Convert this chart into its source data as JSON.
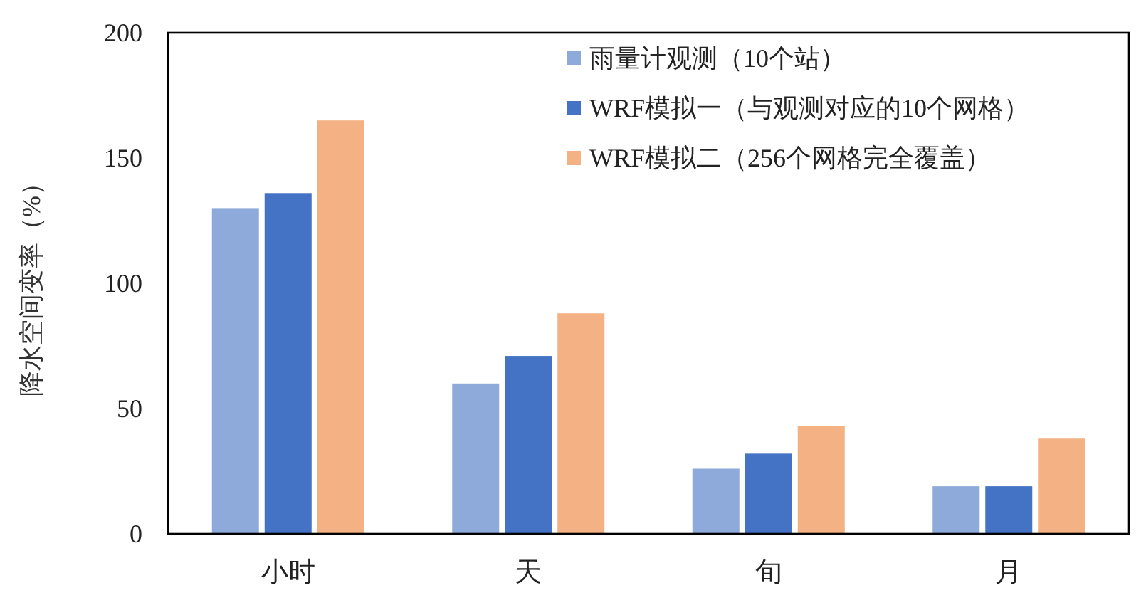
{
  "chart_data": {
    "type": "bar",
    "ylabel": "降水空间变率（%）",
    "categories": [
      "小时",
      "天",
      "旬",
      "月"
    ],
    "series": [
      {
        "name": "雨量计观测（10个站）",
        "color": "#8eaadb",
        "values": [
          130,
          60,
          26,
          19
        ]
      },
      {
        "name": "WRF模拟一（与观测对应的10个网格）",
        "color": "#4472c4",
        "values": [
          136,
          71,
          32,
          19
        ]
      },
      {
        "name": "WRF模拟二（256个网格完全覆盖）",
        "color": "#f4b183",
        "values": [
          165,
          88,
          43,
          38
        ]
      }
    ],
    "ylim": [
      0,
      200
    ],
    "yticks": [
      0,
      50,
      100,
      150,
      200
    ],
    "legend": "top right"
  }
}
